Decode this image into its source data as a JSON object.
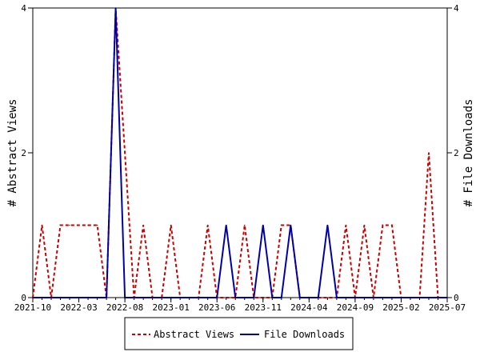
{
  "chart_data": {
    "type": "line",
    "x_ticks": [
      "2021-10",
      "2022-03",
      "2022-08",
      "2023-01",
      "2023-06",
      "2023-11",
      "2024-04",
      "2024-09",
      "2025-02",
      "2025-07"
    ],
    "x": [
      "2021-10",
      "2021-11",
      "2021-12",
      "2022-01",
      "2022-02",
      "2022-03",
      "2022-04",
      "2022-05",
      "2022-06",
      "2022-07",
      "2022-08",
      "2022-09",
      "2022-10",
      "2022-11",
      "2022-12",
      "2023-01",
      "2023-02",
      "2023-03",
      "2023-04",
      "2023-05",
      "2023-06",
      "2023-07",
      "2023-08",
      "2023-09",
      "2023-10",
      "2023-11",
      "2023-12",
      "2024-01",
      "2024-02",
      "2024-03",
      "2024-04",
      "2024-05",
      "2024-06",
      "2024-07",
      "2024-08",
      "2024-09",
      "2024-10",
      "2024-11",
      "2024-12",
      "2025-01",
      "2025-02",
      "2025-03",
      "2025-04",
      "2025-05",
      "2025-06",
      "2025-07"
    ],
    "ylabel_left": "# Abstract Views",
    "ylabel_right": "# File Downloads",
    "ylim": [
      0,
      4
    ],
    "y_ticks": [
      "0",
      "2",
      "4"
    ],
    "series": [
      {
        "name": "Abstract Views",
        "color": "#cc0000",
        "style": "dashed",
        "values": [
          0,
          1,
          0,
          1,
          1,
          1,
          1,
          1,
          0,
          4,
          2,
          0,
          1,
          0,
          0,
          1,
          0,
          0,
          0,
          1,
          0,
          0,
          0,
          1,
          0,
          0,
          0,
          1,
          1,
          0,
          0,
          0,
          0,
          0,
          1,
          0,
          1,
          0,
          1,
          1,
          0,
          0,
          0,
          2,
          0,
          0
        ]
      },
      {
        "name": "File Downloads",
        "color": "#0000aa",
        "style": "solid",
        "values": [
          0,
          0,
          0,
          0,
          0,
          0,
          0,
          0,
          0,
          4,
          0,
          0,
          0,
          0,
          0,
          0,
          0,
          0,
          0,
          0,
          0,
          1,
          0,
          0,
          0,
          1,
          0,
          0,
          1,
          0,
          0,
          0,
          1,
          0,
          0,
          0,
          0,
          0,
          0,
          0,
          0,
          0,
          0,
          0,
          0,
          0
        ]
      }
    ],
    "legend": [
      "Abstract Views",
      "File Downloads"
    ],
    "legend_position": "bottom"
  }
}
